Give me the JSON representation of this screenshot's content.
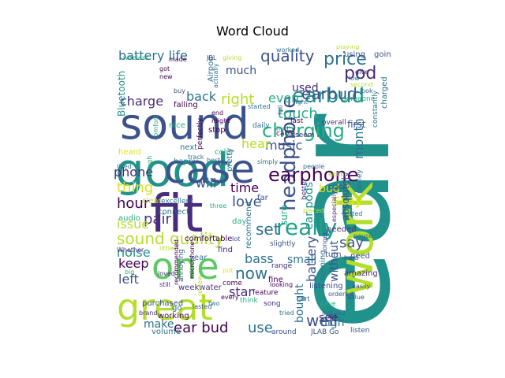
{
  "chart_data": {
    "type": "wordcloud",
    "title": "Word Cloud",
    "palette": [
      "#440154",
      "#3b528b",
      "#21918c",
      "#1fa187",
      "#5ec962",
      "#b5de2b",
      "#dbe41a",
      "#2c728e",
      "#472d7b",
      "#27ad81"
    ],
    "words": [
      {
        "text": "ear",
        "weight": 1.0,
        "color": "#21918c"
      },
      {
        "text": "sound",
        "weight": 0.62,
        "color": "#3b528b"
      },
      {
        "text": "good",
        "weight": 0.66,
        "color": "#21918c"
      },
      {
        "text": "work",
        "weight": 0.6,
        "color": "#b5de2b"
      },
      {
        "text": "fit",
        "weight": 0.58,
        "color": "#472d7b"
      },
      {
        "text": "case",
        "weight": 0.52,
        "color": "#3b528b"
      },
      {
        "text": "one",
        "weight": 0.5,
        "color": "#5ec962"
      },
      {
        "text": "great",
        "weight": 0.5,
        "color": "#b5de2b"
      },
      {
        "text": "earbud",
        "weight": 0.25,
        "color": "#21918c"
      },
      {
        "text": "charging",
        "weight": 0.24,
        "color": "#27ad81"
      },
      {
        "text": "quality",
        "weight": 0.2,
        "color": "#3b528b"
      },
      {
        "text": "headphone",
        "weight": 0.22,
        "color": "#3b528b"
      },
      {
        "text": "price",
        "weight": 0.2,
        "color": "#2c728e"
      },
      {
        "text": "earphone",
        "weight": 0.2,
        "color": "#440154"
      },
      {
        "text": "really",
        "weight": 0.22,
        "color": "#1fa187"
      },
      {
        "text": "sound quality",
        "weight": 0.2,
        "color": "#b5de2b"
      },
      {
        "text": "battery life",
        "weight": 0.16,
        "color": "#2c728e"
      },
      {
        "text": "much",
        "weight": 0.14,
        "color": "#3b528b"
      },
      {
        "text": "charge",
        "weight": 0.15,
        "color": "#472d7b"
      },
      {
        "text": "back",
        "weight": 0.14,
        "color": "#2c728e"
      },
      {
        "text": "right",
        "weight": 0.15,
        "color": "#b5de2b"
      },
      {
        "text": "pod",
        "weight": 0.15,
        "color": "#472d7b"
      },
      {
        "text": "month",
        "weight": 0.13,
        "color": "#2c728e"
      },
      {
        "text": "touch",
        "weight": 0.15,
        "color": "#27ad81"
      },
      {
        "text": "used",
        "weight": 0.12,
        "color": "#472d7b"
      },
      {
        "text": "even",
        "weight": 0.13,
        "color": "#27ad81"
      },
      {
        "text": "music",
        "weight": 0.13,
        "color": "#3b528b"
      },
      {
        "text": "hear",
        "weight": 0.13,
        "color": "#b5de2b"
      },
      {
        "text": "phone",
        "weight": 0.14,
        "color": "#472d7b"
      },
      {
        "text": "thing",
        "weight": 0.14,
        "color": "#dbe41a"
      },
      {
        "text": "will",
        "weight": 0.14,
        "color": "#3b528b"
      },
      {
        "text": "time",
        "weight": 0.14,
        "color": "#440154"
      },
      {
        "text": "hour",
        "weight": 0.14,
        "color": "#440154"
      },
      {
        "text": "pair",
        "weight": 0.14,
        "color": "#472d7b"
      },
      {
        "text": "love",
        "weight": 0.14,
        "color": "#3b528b"
      },
      {
        "text": "stay",
        "weight": 0.14,
        "color": "#dbe41a"
      },
      {
        "text": "set",
        "weight": 0.16,
        "color": "#2c728e"
      },
      {
        "text": "issue",
        "weight": 0.12,
        "color": "#b5de2b"
      },
      {
        "text": "noise",
        "weight": 0.13,
        "color": "#21918c"
      },
      {
        "text": "keep",
        "weight": 0.14,
        "color": "#440154"
      },
      {
        "text": "left",
        "weight": 0.14,
        "color": "#3b528b"
      },
      {
        "text": "bass",
        "weight": 0.14,
        "color": "#2c728e"
      },
      {
        "text": "now",
        "weight": 0.15,
        "color": "#2c728e"
      },
      {
        "text": "star",
        "weight": 0.13,
        "color": "#472d7b"
      },
      {
        "text": "say",
        "weight": 0.14,
        "color": "#3b528b"
      },
      {
        "text": "well",
        "weight": 0.16,
        "color": "#3b528b"
      },
      {
        "text": "make",
        "weight": 0.13,
        "color": "#2c728e"
      },
      {
        "text": "ear bud",
        "weight": 0.14,
        "color": "#440154"
      },
      {
        "text": "use",
        "weight": 0.14,
        "color": "#2c728e"
      },
      {
        "text": "high",
        "weight": 0.12,
        "color": "#2c728e"
      },
      {
        "text": "Bluetooth",
        "weight": 0.11,
        "color": "#21918c"
      },
      {
        "text": "ear pods",
        "weight": 0.12,
        "color": "#21918c"
      },
      {
        "text": "battery",
        "weight": 0.12,
        "color": "#3b528b"
      },
      {
        "text": "without",
        "weight": 0.11,
        "color": "#3b528b"
      },
      {
        "text": "bought",
        "weight": 0.11,
        "color": "#2c728e"
      },
      {
        "text": "small",
        "weight": 0.11,
        "color": "#2c728e"
      },
      {
        "text": "sure",
        "weight": 0.11,
        "color": "#27ad81"
      },
      {
        "text": "see",
        "weight": 0.11,
        "color": "#472d7b"
      },
      {
        "text": "absolutely",
        "weight": 0.09,
        "color": "#3b528b"
      },
      {
        "text": "bud",
        "weight": 0.1,
        "color": "#dbe41a"
      },
      {
        "text": "first",
        "weight": 0.08,
        "color": "#3b528b"
      },
      {
        "text": "earbud",
        "weight": 0.13,
        "color": "#3b528b"
      },
      {
        "text": "Airpod",
        "weight": 0.07,
        "color": "#2c728e"
      },
      {
        "text": "comfortable",
        "weight": 0.07,
        "color": "#440154"
      },
      {
        "text": "recommend",
        "weight": 0.07,
        "color": "#2c728e"
      },
      {
        "text": "needed",
        "weight": 0.07,
        "color": "#472d7b"
      },
      {
        "text": "amazing",
        "weight": 0.07,
        "color": "#472d7b"
      },
      {
        "text": "running",
        "weight": 0.07,
        "color": "#2c728e"
      },
      {
        "text": "listening",
        "weight": 0.07,
        "color": "#3b528b"
      },
      {
        "text": "working",
        "weight": 0.06,
        "color": "#440154"
      },
      {
        "text": "volume",
        "weight": 0.06,
        "color": "#2c728e"
      },
      {
        "text": "purchased",
        "weight": 0.06,
        "color": "#3b528b"
      },
      {
        "text": "weekwater",
        "weight": 0.06,
        "color": "#472d7b"
      },
      {
        "text": "connect",
        "weight": 0.06,
        "color": "#2c728e"
      },
      {
        "text": "audio",
        "weight": 0.06,
        "color": "#27ad81"
      },
      {
        "text": "clear",
        "weight": 0.06,
        "color": "#b5de2b"
      },
      {
        "text": "excellent",
        "weight": 0.05,
        "color": "#2c728e"
      },
      {
        "text": "color",
        "weight": 0.06,
        "color": "#27ad81"
      },
      {
        "text": "next",
        "weight": 0.06,
        "color": "#2c728e"
      },
      {
        "text": "happy",
        "weight": 0.06,
        "color": "#2c728e"
      },
      {
        "text": "easy",
        "weight": 0.06,
        "color": "#2c728e"
      },
      {
        "text": "pretty",
        "weight": 0.06,
        "color": "#2c728e"
      },
      {
        "text": "year",
        "weight": 0.06,
        "color": "#2c728e"
      },
      {
        "text": "fine",
        "weight": 0.06,
        "color": "#440154"
      },
      {
        "text": "range",
        "weight": 0.05,
        "color": "#472d7b"
      },
      {
        "text": "feature",
        "weight": 0.05,
        "color": "#440154"
      },
      {
        "text": "find",
        "weight": 0.06,
        "color": "#472d7b"
      },
      {
        "text": "slightly",
        "weight": 0.05,
        "color": "#3b528b"
      },
      {
        "text": "come",
        "weight": 0.05,
        "color": "#440154"
      },
      {
        "text": "think",
        "weight": 0.05,
        "color": "#27ad81"
      },
      {
        "text": "song",
        "weight": 0.05,
        "color": "#472d7b"
      },
      {
        "text": "around",
        "weight": 0.05,
        "color": "#3b528b"
      },
      {
        "text": "JLAB Go",
        "weight": 0.05,
        "color": "#3b528b"
      },
      {
        "text": "listen",
        "weight": 0.05,
        "color": "#3b528b"
      },
      {
        "text": "turn",
        "weight": 0.06,
        "color": "#3b528b"
      },
      {
        "text": "place",
        "weight": 0.05,
        "color": "#3b528b"
      },
      {
        "text": "better",
        "weight": 0.05,
        "color": "#472d7b"
      },
      {
        "text": "need",
        "weight": 0.06,
        "color": "#3b528b"
      },
      {
        "text": "falling",
        "weight": 0.06,
        "color": "#440154"
      },
      {
        "text": "stop",
        "weight": 0.06,
        "color": "#440154"
      },
      {
        "text": "perfectly",
        "weight": 0.05,
        "color": "#440154"
      },
      {
        "text": "last",
        "weight": 0.05,
        "color": "#440154"
      },
      {
        "text": "overall",
        "weight": 0.05,
        "color": "#472d7b"
      },
      {
        "text": "cable",
        "weight": 0.05,
        "color": "#440154"
      },
      {
        "text": "daily",
        "weight": 0.05,
        "color": "#2c728e"
      },
      {
        "text": "hurt",
        "weight": 0.04,
        "color": "#2c728e"
      },
      {
        "text": "seem",
        "weight": 0.05,
        "color": "#472d7b"
      },
      {
        "text": "someone",
        "weight": 0.05,
        "color": "#27ad81"
      },
      {
        "text": "light",
        "weight": 0.04,
        "color": "#2c728e"
      },
      {
        "text": "charged",
        "weight": 0.05,
        "color": "#2c728e"
      },
      {
        "text": "constantly",
        "weight": 0.04,
        "color": "#2c728e"
      },
      {
        "text": "money",
        "weight": 0.05,
        "color": "#2c728e"
      },
      {
        "text": "tested",
        "weight": 0.04,
        "color": "#2c728e"
      },
      {
        "text": "pause",
        "weight": 0.04,
        "color": "#2c728e"
      },
      {
        "text": "hard",
        "weight": 0.04,
        "color": "#3b528b"
      },
      {
        "text": "easily",
        "weight": 0.04,
        "color": "#3b528b"
      },
      {
        "text": "value",
        "weight": 0.04,
        "color": "#3b528b"
      },
      {
        "text": "ordered",
        "weight": 0.04,
        "color": "#3b528b"
      },
      {
        "text": "instead",
        "weight": 0.04,
        "color": "#2c728e"
      },
      {
        "text": "tried",
        "weight": 0.04,
        "color": "#2c728e"
      },
      {
        "text": "looking",
        "weight": 0.04,
        "color": "#440154"
      },
      {
        "text": "every",
        "weight": 0.04,
        "color": "#440154"
      },
      {
        "text": "put",
        "weight": 0.04,
        "color": "#dbe41a"
      },
      {
        "text": "microphone",
        "weight": 0.04,
        "color": "#440154"
      },
      {
        "text": "recommended",
        "weight": 0.04,
        "color": "#440154"
      },
      {
        "text": "annoying",
        "weight": 0.05,
        "color": "#3b528b"
      },
      {
        "text": "loved",
        "weight": 0.04,
        "color": "#472d7b"
      },
      {
        "text": "still",
        "weight": 0.04,
        "color": "#472d7b"
      },
      {
        "text": "brand",
        "weight": 0.04,
        "color": "#472d7b"
      },
      {
        "text": "go",
        "weight": 0.05,
        "color": "#2c728e"
      },
      {
        "text": "big",
        "weight": 0.04,
        "color": "#27ad81"
      },
      {
        "text": "little",
        "weight": 0.04,
        "color": "#b5de2b"
      },
      {
        "text": "Whether",
        "weight": 0.04,
        "color": "#472d7b"
      },
      {
        "text": "liked",
        "weight": 0.04,
        "color": "#2c728e"
      },
      {
        "text": "heard",
        "weight": 0.05,
        "color": "#dbe41a"
      },
      {
        "text": "though",
        "weight": 0.04,
        "color": "#27ad81"
      },
      {
        "text": "comfort",
        "weight": 0.04,
        "color": "#27ad81"
      },
      {
        "text": "nice",
        "weight": 0.05,
        "color": "#27ad81"
      },
      {
        "text": "might",
        "weight": 0.04,
        "color": "#440154"
      },
      {
        "text": "end",
        "weight": 0.04,
        "color": "#440154"
      },
      {
        "text": "buy",
        "weight": 0.04,
        "color": "#3b528b"
      },
      {
        "text": "new",
        "weight": 0.04,
        "color": "#440154"
      },
      {
        "text": "got",
        "weight": 0.04,
        "color": "#440154"
      },
      {
        "text": "made",
        "weight": 0.04,
        "color": "#440154"
      },
      {
        "text": "JBL",
        "weight": 0.04,
        "color": "#3b528b"
      },
      {
        "text": "giving",
        "weight": 0.04,
        "color": "#b5de2b"
      },
      {
        "text": "worked",
        "weight": 0.04,
        "color": "#2c728e"
      },
      {
        "text": "actually",
        "weight": 0.04,
        "color": "#2c728e"
      },
      {
        "text": "wireless",
        "weight": 0.04,
        "color": "#27ad81"
      },
      {
        "text": "started",
        "weight": 0.04,
        "color": "#2c728e"
      },
      {
        "text": "playing",
        "weight": 0.04,
        "color": "#b5de2b"
      },
      {
        "text": "using",
        "weight": 0.05,
        "color": "#3b528b"
      },
      {
        "text": "going",
        "weight": 0.05,
        "color": "#3b528b"
      },
      {
        "text": "low",
        "weight": 0.04,
        "color": "#2c728e"
      },
      {
        "text": "give",
        "weight": 0.04,
        "color": "#472d7b"
      },
      {
        "text": "second",
        "weight": 0.04,
        "color": "#b5de2b"
      },
      {
        "text": "look",
        "weight": 0.04,
        "color": "#2c728e"
      },
      {
        "text": "best",
        "weight": 0.04,
        "color": "#2c728e"
      },
      {
        "text": "far",
        "weight": 0.05,
        "color": "#3b528b"
      },
      {
        "text": "day",
        "weight": 0.05,
        "color": "#27ad81"
      },
      {
        "text": "lot",
        "weight": 0.04,
        "color": "#3b528b"
      },
      {
        "text": "three",
        "weight": 0.04,
        "color": "#27ad81"
      },
      {
        "text": "either",
        "weight": 0.04,
        "color": "#b5de2b"
      },
      {
        "text": "simply",
        "weight": 0.04,
        "color": "#2c728e"
      },
      {
        "text": "track",
        "weight": 0.04,
        "color": "#2c728e"
      },
      {
        "text": "people",
        "weight": 0.04,
        "color": "#2c728e"
      },
      {
        "text": "full",
        "weight": 0.04,
        "color": "#3b528b"
      },
      {
        "text": "placed",
        "weight": 0.04,
        "color": "#b5de2b"
      },
      {
        "text": "especially",
        "weight": 0.04,
        "color": "#472d7b"
      },
      {
        "text": "longer",
        "weight": 0.04,
        "color": "#3b528b"
      },
      {
        "text": "part",
        "weight": 0.04,
        "color": "#2c728e"
      },
      {
        "text": "gave",
        "weight": 0.04,
        "color": "#27ad81"
      },
      {
        "text": "review",
        "weight": 0.04,
        "color": "#b5de2b"
      },
      {
        "text": "two",
        "weight": 0.04,
        "color": "#2c728e"
      },
      {
        "text": "lasted",
        "weight": 0.04,
        "color": "#3b528b"
      }
    ]
  }
}
